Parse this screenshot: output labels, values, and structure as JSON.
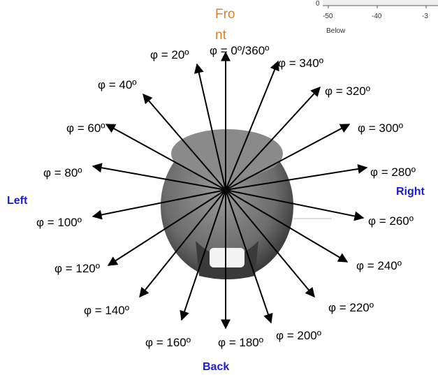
{
  "directions": {
    "front": [
      "Fro",
      "nt"
    ],
    "left": "Left",
    "right": "Right",
    "back": "Back"
  },
  "scale_inset": {
    "zero": "0",
    "ticks": [
      "-50",
      "-40",
      "-3"
    ],
    "caption": "Below"
  },
  "angle_labels": [
    "φ = 0º/360º",
    "φ = 20º",
    "φ = 40º",
    "φ = 60º",
    "φ = 80º",
    "φ = 100º",
    "φ = 120º",
    "φ = 140º",
    "φ = 160º",
    "φ = 180º",
    "φ = 200º",
    "φ = 220º",
    "φ = 240º",
    "φ = 260º",
    "φ = 280º",
    "φ = 300º",
    "φ = 320º",
    "φ = 340º"
  ]
}
